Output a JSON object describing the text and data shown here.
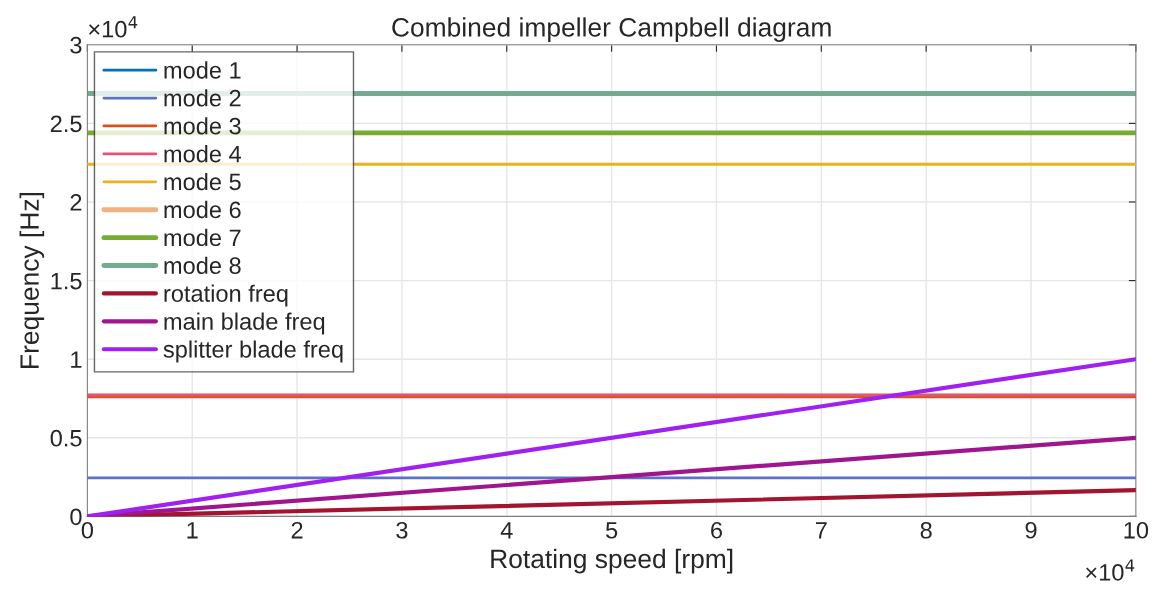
{
  "chart_data": {
    "type": "line",
    "title": "Combined impeller Campbell diagram",
    "xlabel": "Rotating speed [rpm]",
    "ylabel": "Frequency [Hz]",
    "x": [
      0,
      10
    ],
    "series": [
      {
        "name": "mode 1",
        "color": "#0072bd",
        "values": [
          null,
          null
        ]
      },
      {
        "name": "mode 2",
        "color": "#5b72c8",
        "values": [
          0.245,
          0.245
        ]
      },
      {
        "name": "mode 3",
        "color": "#d95319",
        "values": [
          0.76,
          0.76
        ]
      },
      {
        "name": "mode 4",
        "color": "#e05579",
        "values": [
          0.772,
          0.772
        ]
      },
      {
        "name": "mode 5",
        "color": "#edb120",
        "values": [
          2.24,
          2.24
        ]
      },
      {
        "name": "mode 6",
        "color": "#f0b080",
        "values": [
          0.768,
          0.768
        ]
      },
      {
        "name": "mode 7",
        "color": "#77ac30",
        "values": [
          2.44,
          2.44
        ]
      },
      {
        "name": "mode 8",
        "color": "#74aa90",
        "values": [
          2.69,
          2.69
        ]
      },
      {
        "name": "rotation freq",
        "color": "#a2142f",
        "values": [
          0,
          0.167
        ]
      },
      {
        "name": "main blade freq",
        "color": "#a0148e",
        "values": [
          0,
          0.5
        ]
      },
      {
        "name": "splitter blade freq",
        "color": "#a020f0",
        "values": [
          0,
          1.0
        ]
      }
    ],
    "xlim": [
      0,
      10
    ],
    "ylim": [
      0,
      3
    ],
    "xticks": [
      0,
      1,
      2,
      3,
      4,
      5,
      6,
      7,
      8,
      9,
      10
    ],
    "yticks": [
      0,
      0.5,
      1,
      1.5,
      2,
      2.5,
      3
    ],
    "annotations": [
      "×10$^{4}$",
      "×10$^{4}$"
    ],
    "grid": true,
    "legend": "top left",
    "line_style": "solid",
    "marker": "none"
  }
}
